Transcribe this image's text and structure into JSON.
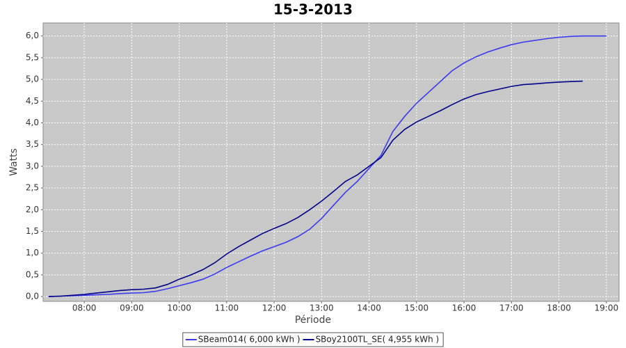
{
  "chart_data": {
    "type": "line",
    "title": "15-3-2013",
    "x_label": "Période",
    "y_label": "Watts",
    "grid": true,
    "legend": "bottom",
    "x": [
      "07:15",
      "07:30",
      "07:45",
      "08:00",
      "08:15",
      "08:30",
      "08:45",
      "09:00",
      "09:15",
      "09:30",
      "09:45",
      "10:00",
      "10:15",
      "10:30",
      "10:45",
      "11:00",
      "11:15",
      "11:30",
      "11:45",
      "12:00",
      "12:15",
      "12:30",
      "12:45",
      "13:00",
      "13:15",
      "13:30",
      "13:45",
      "14:00",
      "14:15",
      "14:30",
      "14:45",
      "15:00",
      "15:15",
      "15:30",
      "15:45",
      "16:00",
      "16:15",
      "16:30",
      "16:45",
      "17:00",
      "17:15",
      "17:30",
      "17:45",
      "18:00",
      "18:15",
      "18:30",
      "18:45",
      "19:00"
    ],
    "xlim": [
      "07:08",
      "19:16"
    ],
    "xticks": [
      "08:00",
      "09:00",
      "10:00",
      "11:00",
      "12:00",
      "13:00",
      "14:00",
      "15:00",
      "16:00",
      "17:00",
      "18:00",
      "19:00"
    ],
    "ylim": [
      -0.11,
      6.3
    ],
    "yticks": [
      {
        "value": 0,
        "label": "0,0"
      },
      {
        "value": 0.5,
        "label": "0,5"
      },
      {
        "value": 1,
        "label": "1,0"
      },
      {
        "value": 1.5,
        "label": "1,5"
      },
      {
        "value": 2,
        "label": "2,0"
      },
      {
        "value": 2.5,
        "label": "2,5"
      },
      {
        "value": 3,
        "label": "3,0"
      },
      {
        "value": 3.5,
        "label": "3,5"
      },
      {
        "value": 4,
        "label": "4,0"
      },
      {
        "value": 4.5,
        "label": "4,5"
      },
      {
        "value": 5,
        "label": "5,0"
      },
      {
        "value": 5.5,
        "label": "5,5"
      },
      {
        "value": 6,
        "label": "6,0"
      }
    ],
    "series": [
      {
        "name": "SBeam014( 6,000 kWh )",
        "color": "#3a3af0",
        "values": [
          0,
          0.01,
          0.02,
          0.03,
          0.04,
          0.05,
          0.07,
          0.08,
          0.09,
          0.12,
          0.18,
          0.25,
          0.32,
          0.4,
          0.52,
          0.67,
          0.8,
          0.93,
          1.05,
          1.15,
          1.25,
          1.38,
          1.55,
          1.8,
          2.1,
          2.4,
          2.65,
          2.95,
          3.25,
          3.8,
          4.15,
          4.45,
          4.7,
          4.95,
          5.2,
          5.38,
          5.52,
          5.63,
          5.72,
          5.8,
          5.86,
          5.9,
          5.94,
          5.97,
          5.99,
          6.0,
          6.0,
          6.0
        ]
      },
      {
        "name": "SBoy2100TL_SE( 4,955 kWh )",
        "color": "#00008b",
        "values": [
          0,
          0.01,
          0.03,
          0.05,
          0.08,
          0.11,
          0.14,
          0.16,
          0.17,
          0.2,
          0.28,
          0.4,
          0.5,
          0.62,
          0.78,
          0.98,
          1.15,
          1.3,
          1.45,
          1.57,
          1.68,
          1.82,
          2.0,
          2.2,
          2.42,
          2.65,
          2.8,
          3.0,
          3.2,
          3.6,
          3.85,
          4.02,
          4.15,
          4.28,
          4.42,
          4.55,
          4.65,
          4.72,
          4.78,
          4.84,
          4.88,
          4.9,
          4.92,
          4.94,
          4.95,
          4.96,
          null,
          null
        ]
      }
    ]
  }
}
